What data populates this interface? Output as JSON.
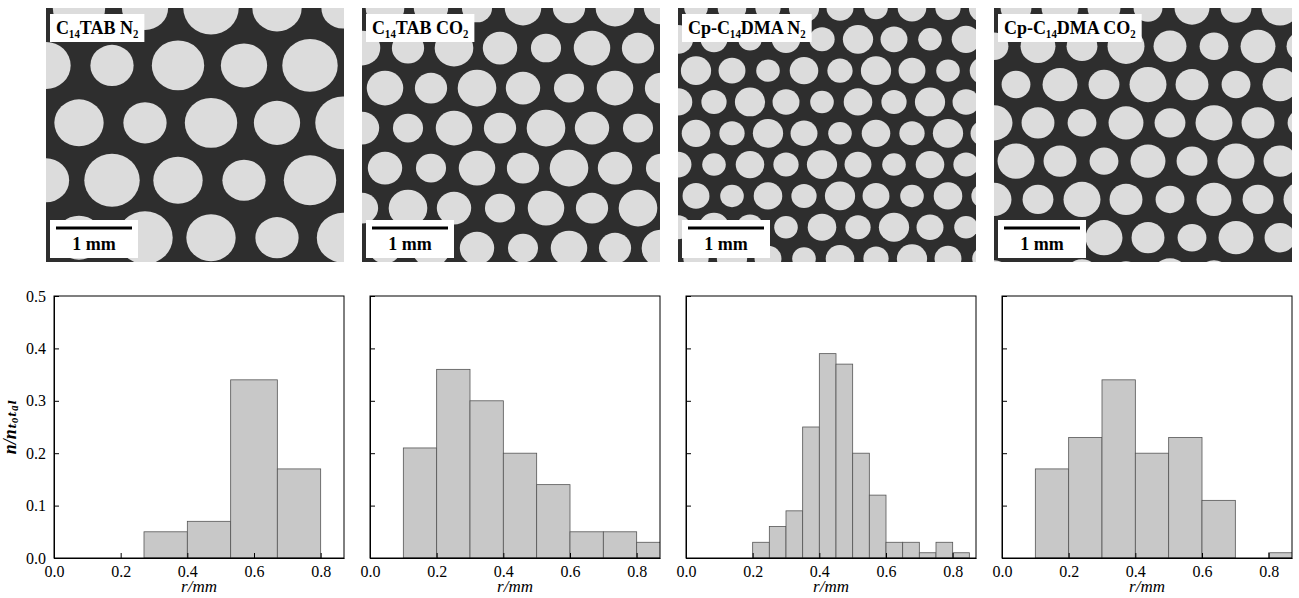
{
  "chart_data": [
    {
      "type": "histogram",
      "title": "C₁₄TAB  N₂",
      "annotations": [
        "1 mm"
      ],
      "xlabel": "r/mm",
      "ylabel": "n/nₜₒₜₐₗ",
      "bins": [
        0.27,
        0.4,
        0.53,
        0.67,
        0.8
      ],
      "values": [
        0.05,
        0.07,
        0.34,
        0.17
      ],
      "color": "#c8c8c8",
      "xlim": [
        0,
        0.87
      ],
      "xticks": [
        {
          "value": 0,
          "label": "0.0"
        },
        0.2,
        0.4,
        0.6,
        0.8
      ],
      "ylim": [
        0,
        0.5
      ],
      "yticks": [
        {
          "value": 0,
          "label": "0.0"
        },
        0.1,
        0.2,
        0.3,
        0.4,
        0.5
      ]
    },
    {
      "type": "histogram",
      "title": "C₁₄TAB  CO₂",
      "annotations": [
        "1 mm"
      ],
      "xlabel": "r/mm",
      "bins": [
        0.1,
        0.2,
        0.3,
        0.4,
        0.5,
        0.6,
        0.7,
        0.8,
        0.9
      ],
      "values": [
        0.21,
        0.36,
        0.3,
        0.2,
        0.14,
        0.05,
        0.05,
        0.03
      ],
      "color": "#c8c8c8",
      "xlim": [
        0,
        0.87
      ],
      "xticks": [
        {
          "value": 0,
          "label": "0.0"
        },
        0.2,
        0.4,
        0.6,
        0.8
      ],
      "ylim": [
        0,
        0.5
      ],
      "yticks": [
        0,
        0.1,
        0.2,
        0.3,
        0.4,
        0.5
      ],
      "tick_labels": "x"
    },
    {
      "type": "histogram",
      "title": "Cp-C₁₄DMA  N₂",
      "annotations": [
        "1 mm"
      ],
      "xlabel": "r/mm",
      "bins": [
        0.2,
        0.25,
        0.3,
        0.35,
        0.4,
        0.45,
        0.5,
        0.55,
        0.6,
        0.65,
        0.7,
        0.75,
        0.8,
        0.85
      ],
      "values": [
        0.03,
        0.06,
        0.09,
        0.25,
        0.39,
        0.37,
        0.2,
        0.12,
        0.03,
        0.03,
        0.01,
        0.03,
        0.01
      ],
      "color": "#c8c8c8",
      "xlim": [
        0,
        0.87
      ],
      "xticks": [
        {
          "value": 0,
          "label": "0.0"
        },
        0.2,
        0.4,
        0.6,
        0.8
      ],
      "ylim": [
        0,
        0.5
      ],
      "yticks": [
        0,
        0.1,
        0.2,
        0.3,
        0.4,
        0.5
      ],
      "tick_labels": "x"
    },
    {
      "type": "histogram",
      "title": "Cp-C₁₄DMA  CO₂",
      "annotations": [
        "1 mm"
      ],
      "xlabel": "r/mm",
      "bins": [
        0.1,
        0.2,
        0.3,
        0.4,
        0.5,
        0.6,
        0.7,
        0.8,
        0.9
      ],
      "values": [
        0.17,
        0.23,
        0.34,
        0.2,
        0.23,
        0.11,
        0,
        0.01
      ],
      "color": "#c8c8c8",
      "xlim": [
        0,
        0.87
      ],
      "xticks": [
        {
          "value": 0,
          "label": "0.0"
        },
        0.2,
        0.4,
        0.6,
        0.8
      ],
      "ylim": [
        0,
        0.5
      ],
      "yticks": [
        0,
        0.1,
        0.2,
        0.3,
        0.4,
        0.5
      ],
      "tick_labels": "x"
    }
  ]
}
